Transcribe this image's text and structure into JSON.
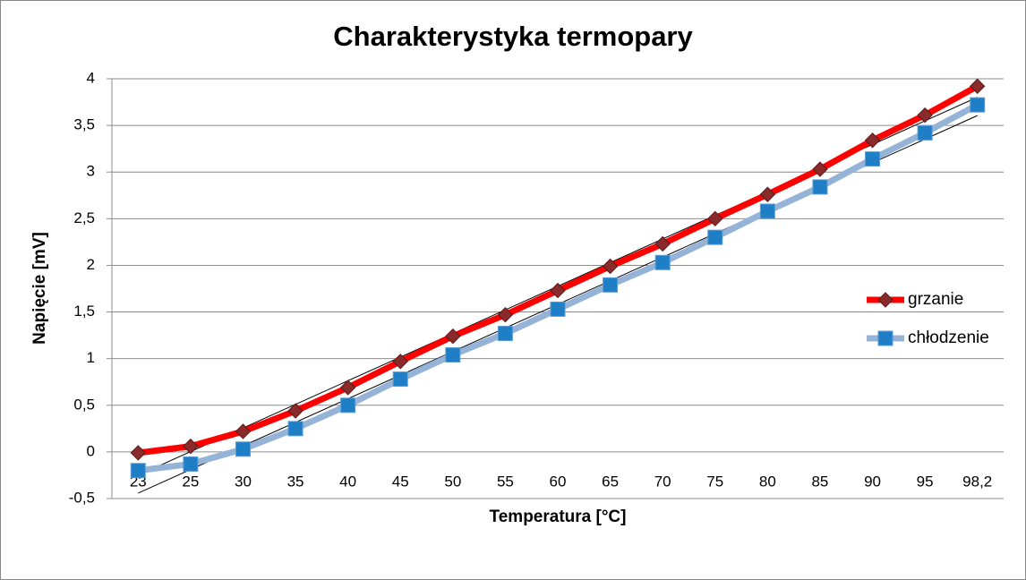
{
  "chart_data": {
    "type": "line",
    "title": "Charakterystyka termopary",
    "x_label": "Temperatura [°C]",
    "y_label": "Napięcie [mV]",
    "categories": [
      "23",
      "25",
      "30",
      "35",
      "40",
      "45",
      "50",
      "55",
      "60",
      "65",
      "70",
      "75",
      "80",
      "85",
      "90",
      "95",
      "98,2"
    ],
    "series": [
      {
        "name": "grzanie",
        "color": "#ff0000",
        "marker_color": "#8b2a2a",
        "marker": "diamond",
        "trendline": "linear",
        "values": [
          -0.01,
          0.06,
          0.22,
          0.44,
          0.69,
          0.97,
          1.24,
          1.47,
          1.73,
          1.99,
          2.23,
          2.5,
          2.76,
          3.03,
          3.34,
          3.61,
          3.92
        ]
      },
      {
        "name": "chłodzenie",
        "color": "#95b3d7",
        "marker_color": "#1f7fc6",
        "marker": "square",
        "trendline": "linear",
        "values": [
          -0.2,
          -0.13,
          0.03,
          0.25,
          0.5,
          0.78,
          1.04,
          1.27,
          1.53,
          1.79,
          2.03,
          2.3,
          2.58,
          2.84,
          3.14,
          3.42,
          3.72
        ]
      }
    ],
    "ylim": [
      -0.5,
      4
    ],
    "yticks": [
      {
        "value": -0.5,
        "label": "-0,5"
      },
      0,
      {
        "value": 0.5,
        "label": "0,5"
      },
      1,
      {
        "value": 1.5,
        "label": "1,5"
      },
      2,
      {
        "value": 2.5,
        "label": "2,5"
      },
      3,
      {
        "value": 3.5,
        "label": "3,5"
      },
      4
    ],
    "grid": true,
    "legend": "right"
  }
}
